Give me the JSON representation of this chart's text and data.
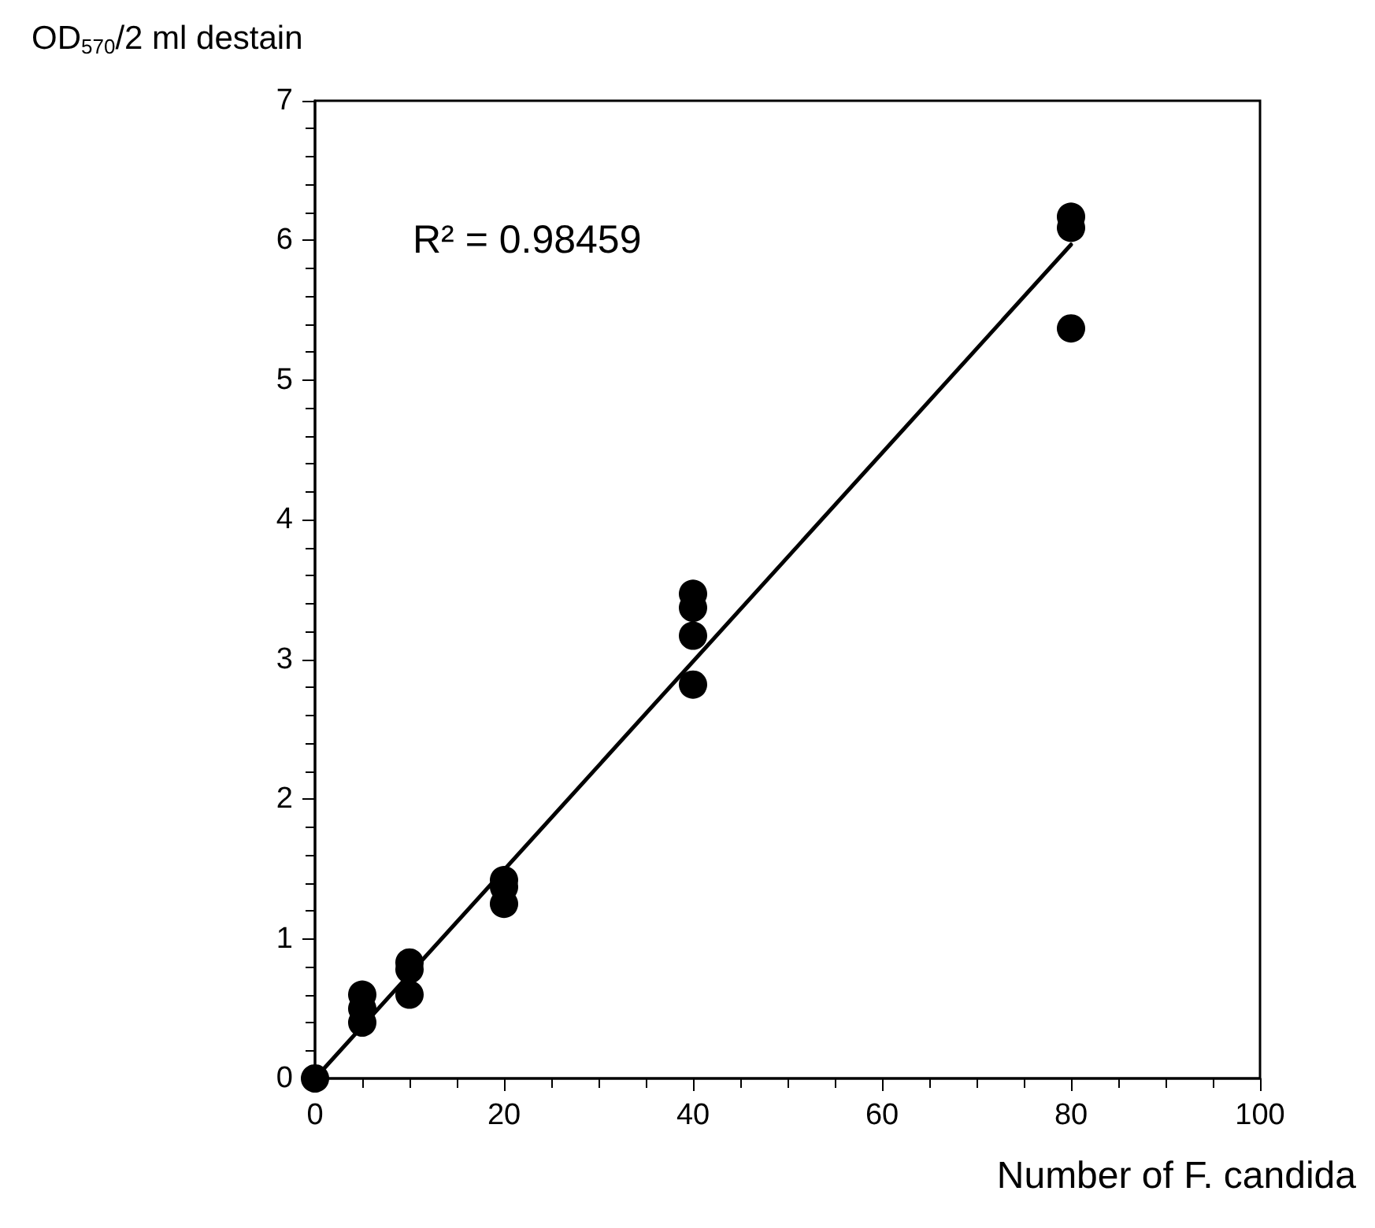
{
  "chart_data": {
    "type": "scatter",
    "xlabel": "Number of F. candida",
    "ylabel": "OD$_{570}$/2 ml destain",
    "annotations": [
      "R² = 0.98459"
    ],
    "series": [
      {
        "color": "#000000",
        "marker": "circle",
        "x": [
          0,
          5,
          5,
          5,
          10,
          10,
          10,
          20,
          20,
          20,
          40,
          40,
          40,
          40,
          80,
          80,
          80
        ],
        "values": [
          0,
          0.6,
          0.5,
          0.4,
          0.83,
          0.78,
          0.6,
          1.42,
          1.37,
          1.25,
          3.47,
          3.37,
          3.17,
          2.82,
          6.17,
          6.09,
          5.37
        ]
      },
      {
        "type": "line",
        "color": "#000000",
        "marker": "none",
        "line_style": "solid",
        "x": [
          0,
          80
        ],
        "values": [
          0,
          5.97
        ]
      }
    ],
    "xlim": [
      0,
      100
    ],
    "xticks": [
      0,
      20,
      40,
      60,
      80,
      100
    ],
    "ylim": [
      0,
      7
    ],
    "yticks": [
      0,
      1,
      2,
      3,
      4,
      5,
      6,
      7
    ],
    "grid": false
  }
}
